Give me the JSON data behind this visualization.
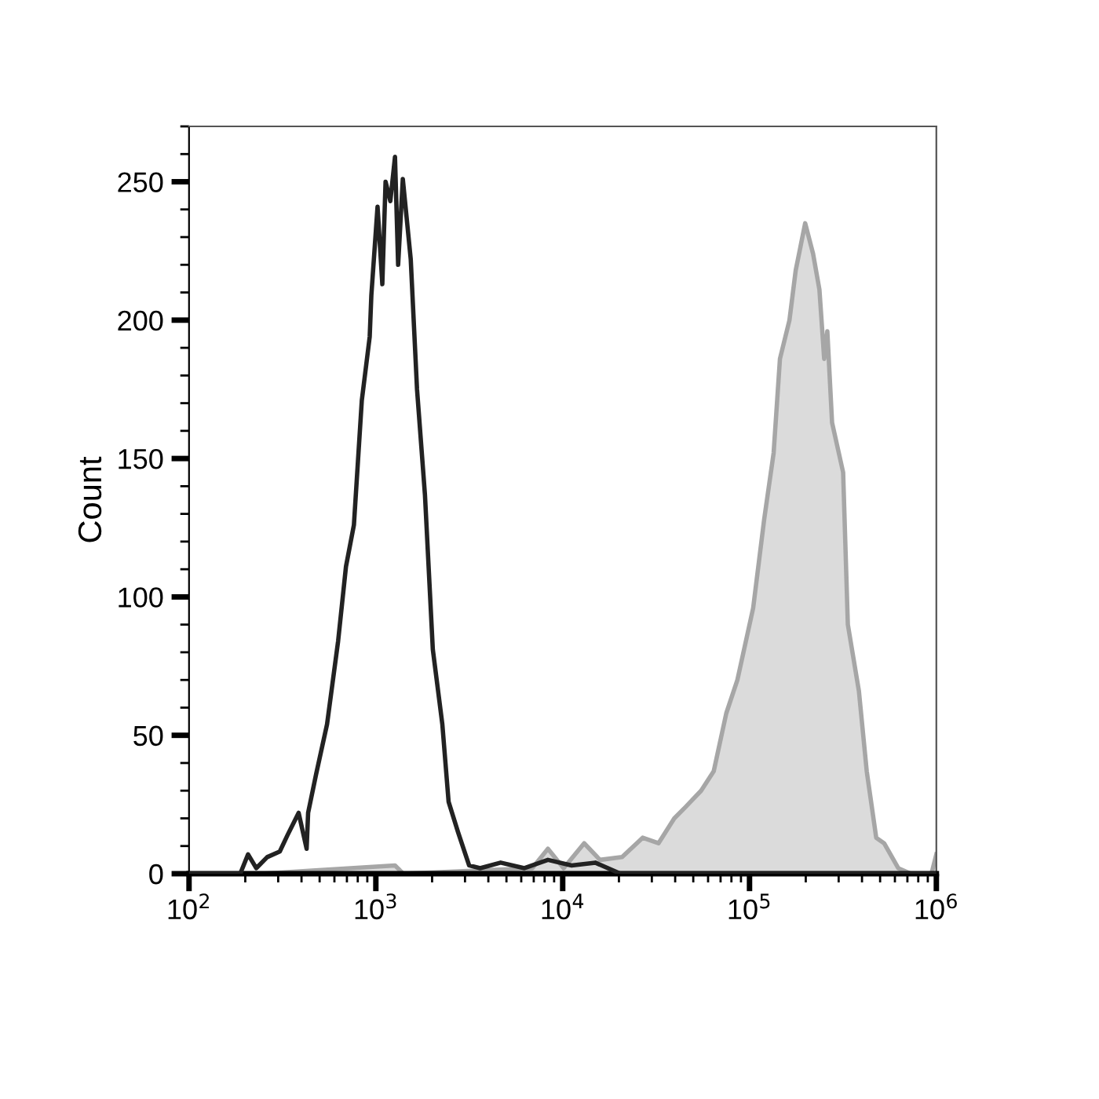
{
  "chart_data": {
    "type": "line",
    "ylabel": "Count",
    "log": "x",
    "xlim": [
      100,
      1000000
    ],
    "ylim": [
      0,
      270
    ],
    "xticks": [
      {
        "value": 100,
        "label": "10$^{2}$"
      },
      {
        "value": 1000,
        "label": "10$^{3}$"
      },
      {
        "value": 10000,
        "label": "10$^{4}$"
      },
      {
        "value": 100000,
        "label": "10$^{5}$"
      },
      {
        "value": 1000000,
        "label": "10$^{6}$"
      }
    ],
    "yticks": [
      0,
      50,
      100,
      150,
      200,
      250
    ],
    "grid": false,
    "legend": false,
    "series": [
      {
        "type": "area",
        "color": "#a6a6a6",
        "x": [
          100,
          245,
          1266,
          1400,
          6873,
          8337,
          10120,
          13030,
          15840,
          20800,
          26790,
          32570,
          39560,
          45310,
          55080,
          64310,
          75120,
          86130,
          104600,
          119800,
          134600,
          145500,
          163600,
          176700,
          198600,
          218900,
          236700,
          251000,
          260900,
          276600,
          317000,
          336000,
          385000,
          424100,
          476600,
          525200,
          625300,
          731000,
          942000,
          1000000
        ],
        "values": [
          0,
          0,
          3,
          0,
          2,
          9,
          2,
          11,
          5,
          6,
          13,
          11,
          20,
          24,
          30,
          37,
          58,
          70,
          96,
          128,
          152,
          186,
          200,
          218,
          235,
          224,
          211,
          186,
          196,
          163,
          145,
          90,
          66,
          37,
          13,
          11,
          2,
          0,
          0,
          7
        ]
      },
      {
        "color": "#222222",
        "x": [
          100,
          188,
          207,
          229,
          262,
          306,
          337,
          386,
          426,
          434,
          479,
          548,
          628,
          692,
          763,
          841,
          927,
          946,
          1021,
          1083,
          1127,
          1195,
          1266,
          1316,
          1394,
          1537,
          1661,
          1831,
          2018,
          2269,
          2451,
          2754,
          3156,
          3616,
          4656,
          6237,
          8337,
          11170,
          14940,
          20410,
          1000000
        ],
        "values": [
          0,
          0,
          7,
          2,
          6,
          8,
          14,
          22,
          9,
          22,
          36,
          54,
          84,
          111,
          126,
          171,
          194,
          209,
          241,
          213,
          250,
          243,
          259,
          220,
          251,
          222,
          175,
          137,
          81,
          54,
          26,
          15,
          3,
          2,
          4,
          2,
          5,
          3,
          4,
          0,
          0
        ]
      }
    ]
  }
}
